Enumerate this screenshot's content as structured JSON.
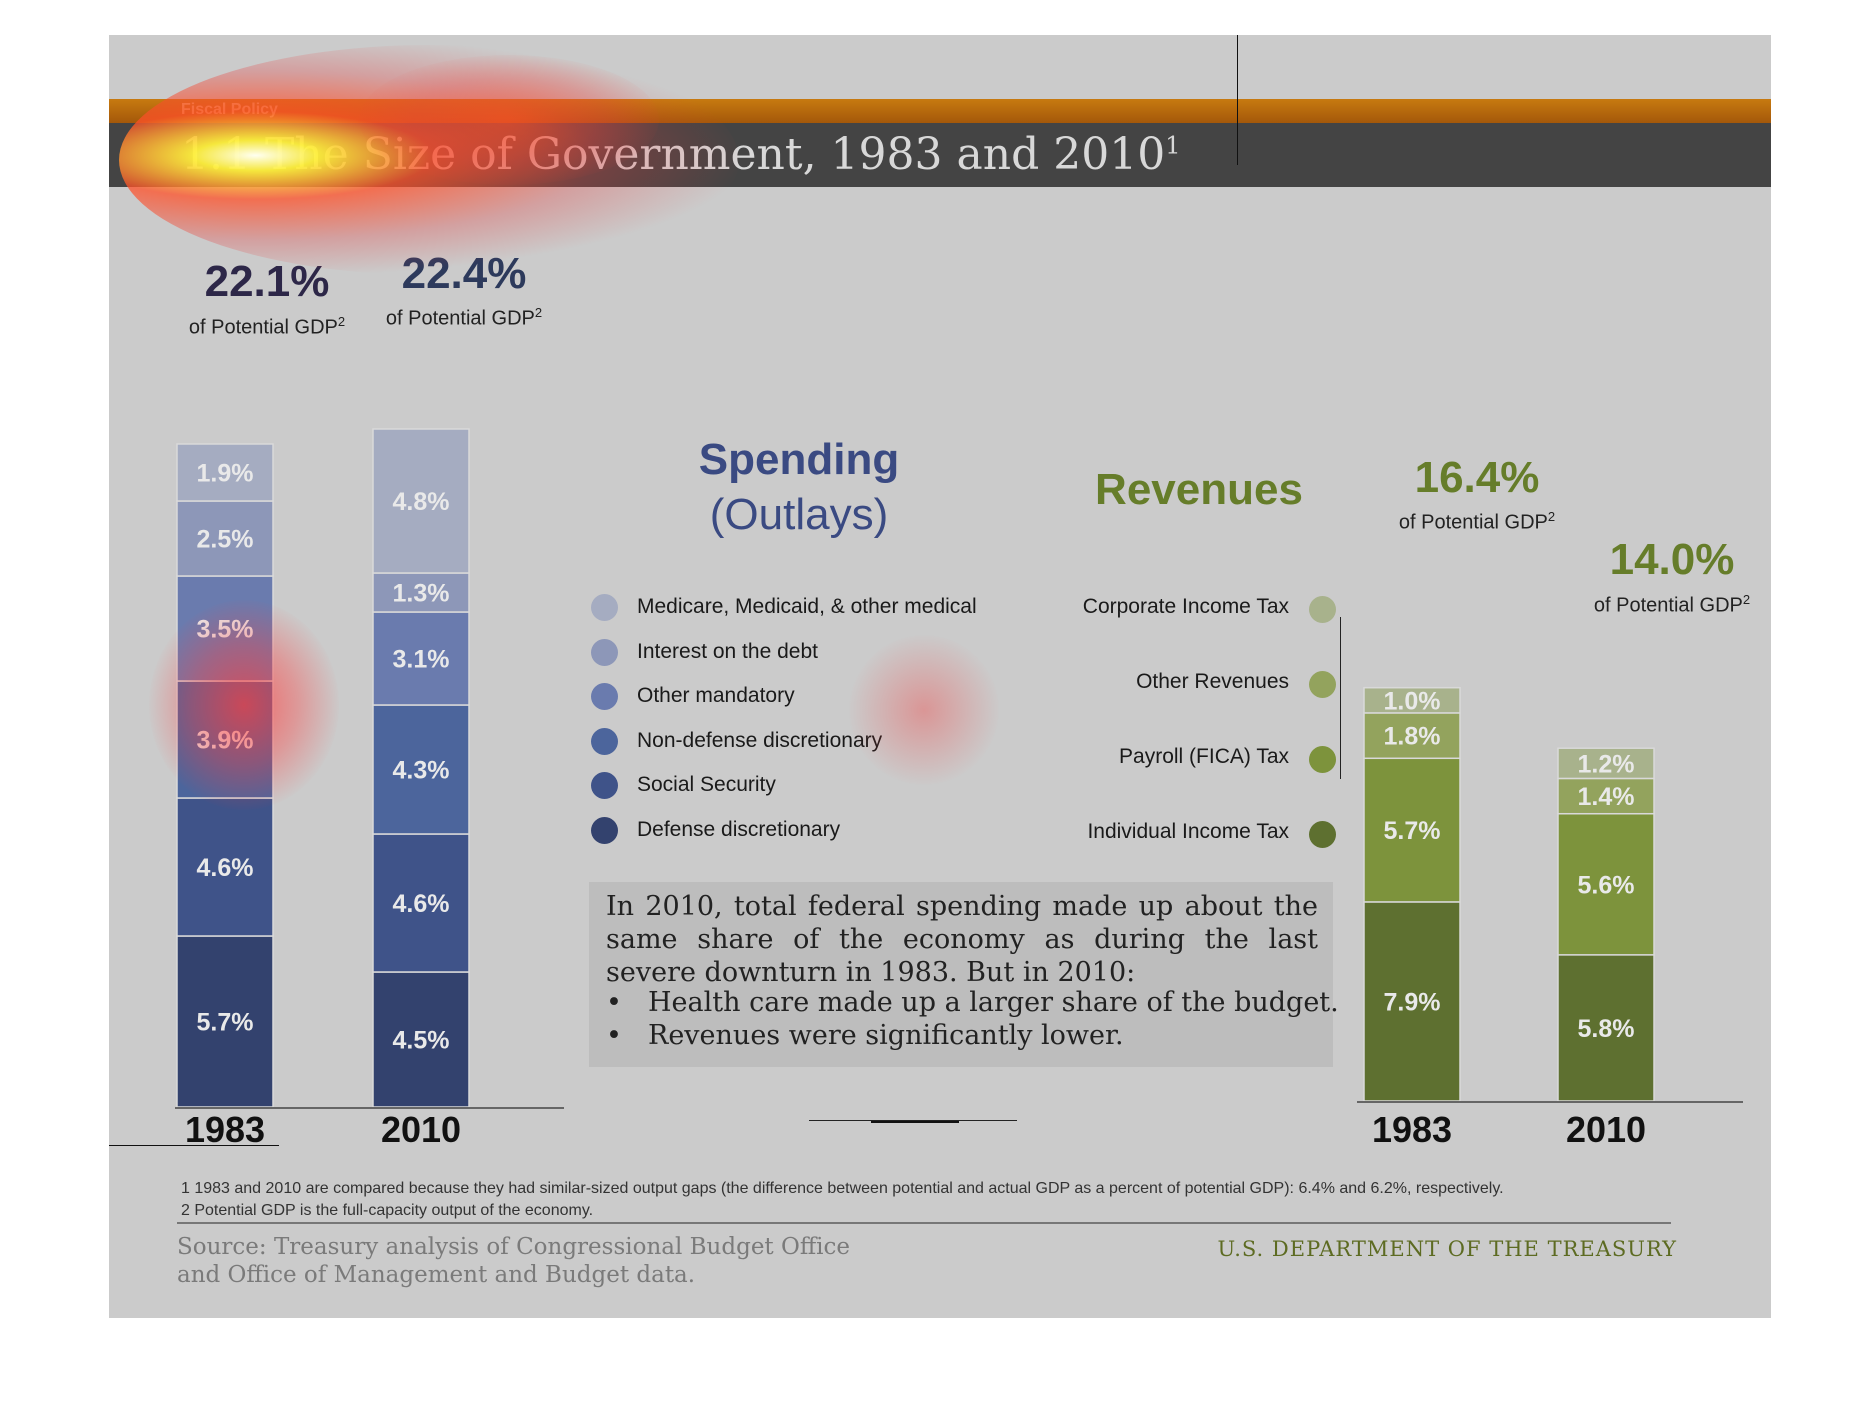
{
  "header": {
    "section": "Fiscal Policy",
    "number": "1.1",
    "title": "The Size of Government, 1983 and 2010",
    "title_sup": "1"
  },
  "spending": {
    "title": "Spending",
    "subtitle": "(Outlays)",
    "color": "#2d3a68",
    "gdp_suffix": "of Potential GDP",
    "gdp_sup": "2",
    "legend": [
      {
        "label": "Medicare, Medicaid, & other medical",
        "color": "#a5acc1"
      },
      {
        "label": "Interest on the debt",
        "color": "#8d97b8"
      },
      {
        "label": "Other mandatory",
        "color": "#6a7bae"
      },
      {
        "label": "Non-defense discretionary",
        "color": "#4c659c"
      },
      {
        "label": "Social Security",
        "color": "#3f5389"
      },
      {
        "label": "Defense discretionary",
        "color": "#33426e"
      }
    ]
  },
  "revenues": {
    "title": "Revenues",
    "color": "#667d2a",
    "gdp_suffix": "of Potential GDP",
    "gdp_sup": "2",
    "legend": [
      {
        "label": "Corporate Income Tax",
        "color": "#a8b28c"
      },
      {
        "label": "Other Revenues",
        "color": "#93a35d"
      },
      {
        "label": "Payroll (FICA) Tax",
        "color": "#7d933c"
      },
      {
        "label": "Individual Income Tax",
        "color": "#5e7030"
      }
    ]
  },
  "note": {
    "paragraph": "In 2010, total federal spending made up about the same share of the economy as during the last severe downturn in 1983. But in 2010:",
    "bullets": [
      "Health care made up a larger share of the budget.",
      "Revenues were significantly lower."
    ]
  },
  "footnotes": [
    "1 1983 and 2010 are compared because they had similar-sized output gaps (the difference between potential and actual GDP as a percent of potential GDP): 6.4% and 6.2%, respectively.",
    "2 Potential GDP is the full-capacity output of the economy."
  ],
  "source": [
    "Source: Treasury analysis of Congressional Budget Office",
    "and Office of Management and Budget data."
  ],
  "agency": "U.S. DEPARTMENT OF THE TREASURY",
  "chart_data": [
    {
      "type": "bar",
      "stacked": true,
      "title": "Spending (Outlays)",
      "categories": [
        "1983",
        "2010"
      ],
      "totals": [
        "22.1%",
        "22.4%"
      ],
      "series": [
        {
          "name": "Defense discretionary",
          "values": [
            5.7,
            4.5
          ],
          "labels": [
            "5.7%",
            "4.5%"
          ]
        },
        {
          "name": "Social Security",
          "values": [
            4.6,
            4.6
          ],
          "labels": [
            "4.6%",
            "4.6%"
          ]
        },
        {
          "name": "Non-defense discretionary",
          "values": [
            3.9,
            4.3
          ],
          "labels": [
            "3.9%",
            "4.3%"
          ]
        },
        {
          "name": "Other mandatory",
          "values": [
            3.5,
            3.1
          ],
          "labels": [
            "3.5%",
            "3.1%"
          ]
        },
        {
          "name": "Interest on the debt",
          "values": [
            2.5,
            1.3
          ],
          "labels": [
            "2.5%",
            "1.3%"
          ]
        },
        {
          "name": "Medicare, Medicaid, & other medical",
          "values": [
            1.9,
            4.8
          ],
          "labels": [
            "1.9%",
            "4.8%"
          ]
        }
      ]
    },
    {
      "type": "bar",
      "stacked": true,
      "title": "Revenues",
      "categories": [
        "1983",
        "2010"
      ],
      "totals": [
        "16.4%",
        "14.0%"
      ],
      "series": [
        {
          "name": "Individual Income Tax",
          "values": [
            7.9,
            5.8
          ],
          "labels": [
            "7.9%",
            "5.8%"
          ]
        },
        {
          "name": "Payroll (FICA) Tax",
          "values": [
            5.7,
            5.6
          ],
          "labels": [
            "5.7%",
            "5.6%"
          ]
        },
        {
          "name": "Other Revenues",
          "values": [
            1.8,
            1.4
          ],
          "labels": [
            "1.8%",
            "1.4%"
          ]
        },
        {
          "name": "Corporate Income Tax",
          "values": [
            1.0,
            1.2
          ],
          "labels": [
            "1.0%",
            "1.2%"
          ]
        }
      ]
    }
  ]
}
